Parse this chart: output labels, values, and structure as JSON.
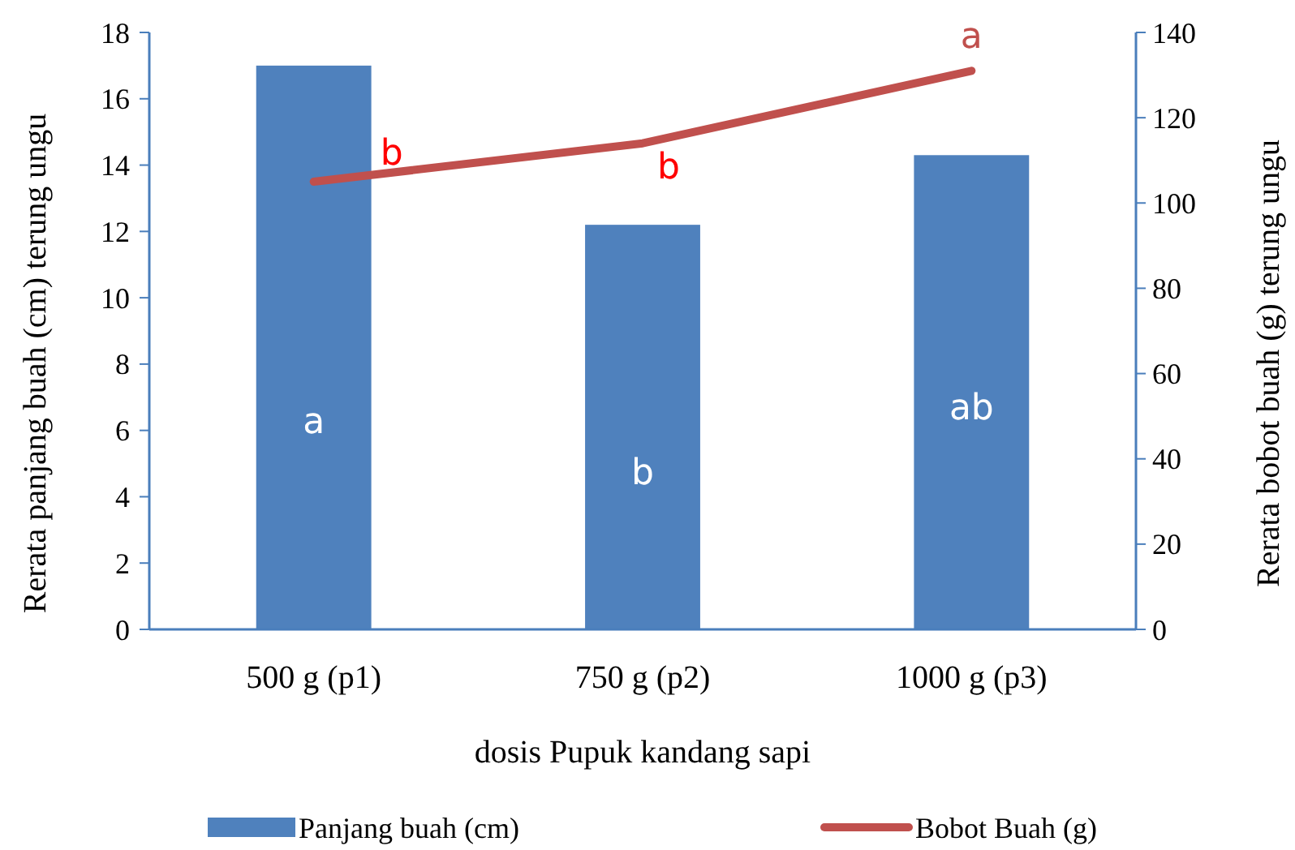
{
  "chart_data": {
    "type": "bar",
    "xlabel": "dosis Pupuk kandang sapi",
    "ylabel": "Rerata panjang buah (cm) terung ungu",
    "y2label": "Rerata bobot buah (g) terung ungu",
    "categories": [
      "500 g (p1)",
      "750 g (p2)",
      "1000 g (p3)"
    ],
    "series": [
      {
        "name": "Panjang buah (cm)",
        "color": "#4f81bd",
        "values": [
          17.0,
          12.2,
          14.3
        ]
      },
      {
        "name": "Bobot Buah (g)",
        "type": "line",
        "axis": "y2",
        "color": "#c0504d",
        "values": [
          105,
          114,
          131
        ]
      }
    ],
    "ylim": [
      0,
      18
    ],
    "yticks": [
      0,
      2,
      4,
      6,
      8,
      10,
      12,
      14,
      16,
      18
    ],
    "y2lim": [
      0,
      140
    ],
    "y2ticks": [
      0,
      20,
      40,
      60,
      80,
      100,
      120,
      140
    ],
    "annotations": [
      "a",
      "b",
      "ab",
      "b",
      "b",
      "a"
    ],
    "legend": "bottom",
    "grid": false
  }
}
